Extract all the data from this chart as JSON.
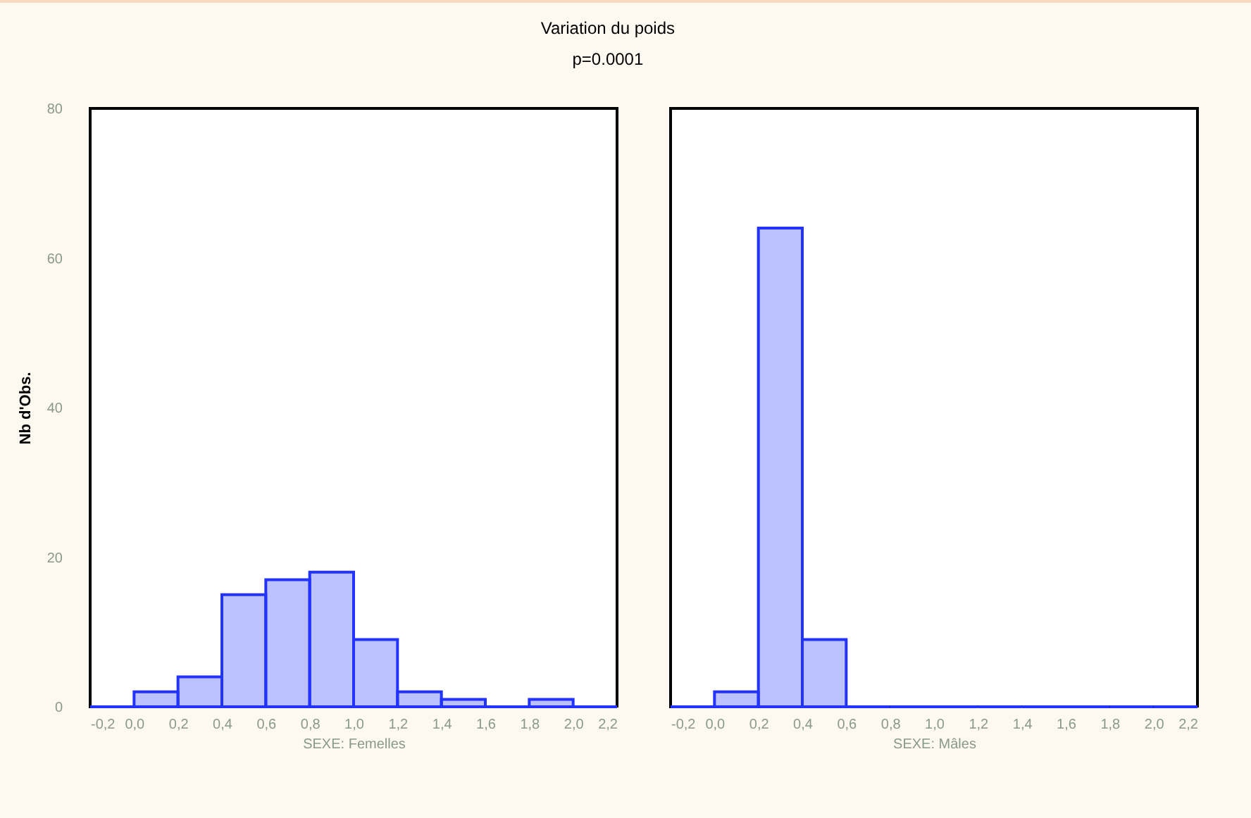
{
  "chart_data": [
    {
      "type": "histogram",
      "title": "Variation du poids",
      "subtitle": "p=0.0001",
      "xlabel": "SEXE: Femelles",
      "ylabel": "Nb d'Obs.",
      "color": "#2233ff",
      "bins": [
        -0.2,
        0.0,
        0.2,
        0.4,
        0.6,
        0.8,
        1.0,
        1.2,
        1.4,
        1.6,
        1.8,
        2.0,
        2.2
      ],
      "values": [
        0,
        2,
        4,
        15,
        17,
        18,
        9,
        2,
        1,
        0,
        1,
        0
      ],
      "xlim": [
        -0.2,
        2.2
      ],
      "ylim": [
        0,
        80
      ],
      "yticks": [
        0,
        20,
        40,
        60,
        80
      ],
      "xticks": [
        {
          "value": -0.2,
          "label": "-0,2"
        },
        {
          "value": 0,
          "label": "0,0"
        },
        {
          "value": 0.2,
          "label": "0,2"
        },
        {
          "value": 0.4,
          "label": "0,4"
        },
        {
          "value": 0.6,
          "label": "0,6"
        },
        {
          "value": 0.8,
          "label": "0,8"
        },
        {
          "value": 1.0,
          "label": "1,0"
        },
        {
          "value": 1.2,
          "label": "1,2"
        },
        {
          "value": 1.4,
          "label": "1,4"
        },
        {
          "value": 1.6,
          "label": "1,6"
        },
        {
          "value": 1.8,
          "label": "1,8"
        },
        {
          "value": 2.0,
          "label": "2,0"
        },
        {
          "value": 2.2,
          "label": "2,2"
        }
      ]
    },
    {
      "type": "histogram",
      "xlabel": "SEXE: Mâles",
      "color": "#2233ff",
      "bins": [
        -0.2,
        0.0,
        0.2,
        0.4,
        0.6,
        0.8,
        1.0,
        1.2,
        1.4,
        1.6,
        1.8,
        2.0,
        2.2
      ],
      "values": [
        0,
        2,
        64,
        9,
        0,
        0,
        0,
        0,
        0,
        0,
        0,
        0
      ],
      "xlim": [
        -0.2,
        2.2
      ],
      "ylim": [
        0,
        80
      ],
      "yticks": [
        0,
        20,
        40,
        60,
        80
      ],
      "tick_labels": "x",
      "xticks": [
        {
          "value": -0.2,
          "label": "-0,2"
        },
        {
          "value": 0,
          "label": "0,0"
        },
        {
          "value": 0.2,
          "label": "0,2"
        },
        {
          "value": 0.4,
          "label": "0,4"
        },
        {
          "value": 0.6,
          "label": "0,6"
        },
        {
          "value": 0.8,
          "label": "0,8"
        },
        {
          "value": 1.0,
          "label": "1,0"
        },
        {
          "value": 1.2,
          "label": "1,2"
        },
        {
          "value": 1.4,
          "label": "1,4"
        },
        {
          "value": 1.6,
          "label": "1,6"
        },
        {
          "value": 1.8,
          "label": "1,8"
        },
        {
          "value": 2.0,
          "label": "2,0"
        },
        {
          "value": 2.2,
          "label": "2,2"
        }
      ]
    }
  ]
}
